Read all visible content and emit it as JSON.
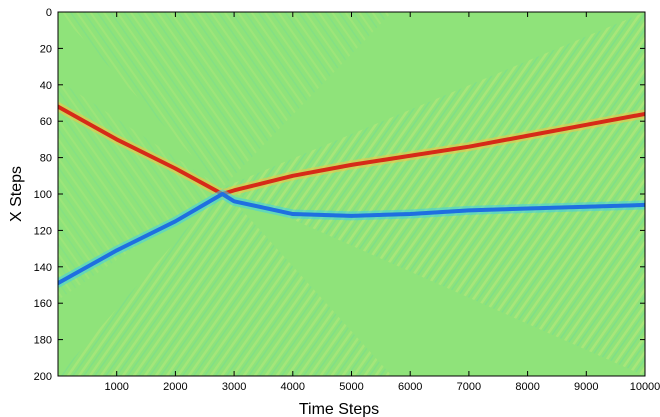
{
  "chart_data": {
    "type": "heatmap",
    "title": "",
    "xlabel": "Time Steps",
    "ylabel": "X Steps",
    "xlim": [
      0,
      10000
    ],
    "ylim": [
      0,
      200
    ],
    "y_axis_direction": "top-to-bottom",
    "xticks": [
      1000,
      2000,
      3000,
      4000,
      5000,
      6000,
      7000,
      8000,
      9000,
      10000
    ],
    "yticks": [
      0,
      20,
      40,
      60,
      80,
      100,
      120,
      140,
      160,
      180,
      200
    ],
    "colormap": "jet",
    "background_color": "#8fe37a",
    "grid": false,
    "legend": "none",
    "series": [
      {
        "color": "#d62a18",
        "x": [
          0,
          1000,
          2000,
          2800,
          3000,
          4000,
          5000,
          6000,
          7000,
          8000,
          9000,
          10000
        ],
        "y": [
          52,
          70,
          86,
          100,
          98,
          90,
          84,
          79,
          74,
          68,
          62,
          56
        ]
      },
      {
        "color": "#1f6fe0",
        "x": [
          0,
          1000,
          2000,
          2800,
          3000,
          4000,
          5000,
          6000,
          7000,
          8000,
          9000,
          10000
        ],
        "y": [
          149,
          131,
          115,
          100,
          104,
          111,
          112,
          111,
          109,
          108,
          107,
          106
        ]
      }
    ]
  }
}
